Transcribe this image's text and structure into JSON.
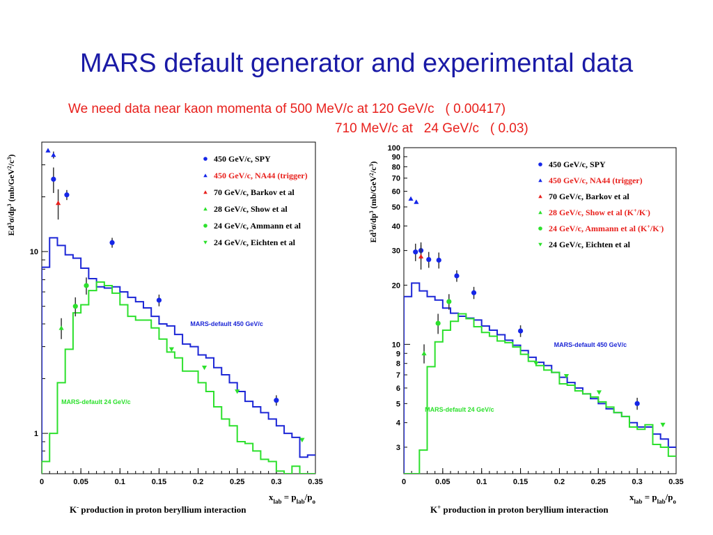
{
  "slide": {
    "title": "MARS default generator  and experimental data",
    "note_line1": "We need data near kaon momenta of 500 MeV/c at 120 GeV/c   ( 0.00417)",
    "note_line2": "710 MeV/c at   24 GeV/c   ( 0.03)"
  },
  "colors": {
    "title": "#1a1aa6",
    "note": "#e8201c",
    "mars_450": "#1c26d6",
    "mars_24": "#2ce02c",
    "spy": "#1526e8",
    "na44": "#1526e8",
    "barkov": "#e8201c",
    "show": "#2ce02c",
    "ammann": "#2ce02c",
    "eichten": "#2ce02c"
  },
  "chart_data": [
    {
      "type": "line",
      "title": "",
      "ylabel": "Ed³σ/dp³  (mb/GeV²/c³)",
      "xlabel": "x_lab = p_lab/p_o",
      "caption": "K⁻ production in proton beryllium interaction",
      "xlim": [
        0,
        0.35
      ],
      "ylim": [
        0.6,
        40
      ],
      "yscale": "log",
      "x_ticks": [
        "0",
        "0.05",
        "0.1",
        "0.15",
        "0.2",
        "0.25",
        "0.3",
        "0.35"
      ],
      "y_tick_labels": [
        "1",
        "10"
      ],
      "grid": false,
      "legend_position": "top-right",
      "legend": [
        {
          "label": "450 GeV/c, SPY",
          "marker": "circle",
          "color_key": "spy",
          "text_color": "#000000"
        },
        {
          "label": "450 GeV/c, NA44 (trigger)",
          "marker": "triangle-up",
          "color_key": "na44",
          "text_color": "#e8201c"
        },
        {
          "label": "70 GeV/c, Barkov et al",
          "marker": "triangle-up",
          "color_key": "barkov",
          "text_color": "#000000"
        },
        {
          "label": "28 GeV/c, Show et al",
          "marker": "triangle-up",
          "color_key": "show",
          "text_color": "#000000"
        },
        {
          "label": "24 GeV/c, Ammann et al",
          "marker": "circle",
          "color_key": "ammann",
          "text_color": "#000000"
        },
        {
          "label": "24 GeV/c, Eichten et al",
          "marker": "triangle-down",
          "color_key": "eichten",
          "text_color": "#000000"
        }
      ],
      "series": [
        {
          "name": "MARS-default 450 GeV/c",
          "kind": "step",
          "color_key": "mars_450",
          "edges": [
            0,
            0.01,
            0.02,
            0.03,
            0.04,
            0.05,
            0.06,
            0.07,
            0.08,
            0.09,
            0.1,
            0.11,
            0.12,
            0.13,
            0.14,
            0.15,
            0.16,
            0.17,
            0.18,
            0.19,
            0.2,
            0.21,
            0.22,
            0.23,
            0.24,
            0.25,
            0.26,
            0.27,
            0.28,
            0.29,
            0.3,
            0.31,
            0.32,
            0.33,
            0.34,
            0.35
          ],
          "values": [
            8.2,
            11.9,
            10.8,
            9.6,
            9.2,
            8.1,
            7.1,
            6.4,
            6.3,
            6.4,
            6.0,
            5.6,
            5.3,
            4.9,
            4.4,
            4.0,
            3.9,
            3.5,
            3.1,
            3.0,
            2.7,
            2.6,
            2.3,
            2.1,
            1.9,
            1.7,
            1.5,
            1.4,
            1.3,
            1.2,
            1.1,
            1.0,
            0.95,
            0.74,
            0.76
          ],
          "label_x": 0.19,
          "label_y": 3.9
        },
        {
          "name": "MARS-default 24 GeV/c",
          "kind": "step",
          "color_key": "mars_24",
          "edges": [
            0,
            0.01,
            0.02,
            0.03,
            0.04,
            0.05,
            0.06,
            0.07,
            0.08,
            0.09,
            0.1,
            0.11,
            0.12,
            0.13,
            0.14,
            0.15,
            0.16,
            0.17,
            0.18,
            0.19,
            0.2,
            0.21,
            0.22,
            0.23,
            0.24,
            0.25,
            0.26,
            0.27,
            0.28,
            0.29,
            0.3,
            0.31,
            0.32,
            0.33,
            0.34,
            0.35
          ],
          "values": [
            0.7,
            1.0,
            1.9,
            2.9,
            4.6,
            5.1,
            6.1,
            6.8,
            6.5,
            5.9,
            5.1,
            4.4,
            4.2,
            4.2,
            3.8,
            3.3,
            2.8,
            2.6,
            2.2,
            2.2,
            1.9,
            1.7,
            1.4,
            1.2,
            1.1,
            0.9,
            0.88,
            0.8,
            0.72,
            0.7,
            0.62,
            0.6,
            0.66,
            0.6,
            0.6
          ],
          "label_x": 0.025,
          "label_y": 1.45
        },
        {
          "name": "450 GeV/c, SPY",
          "kind": "points",
          "marker": "circle",
          "color_key": "spy",
          "points": [
            [
              0.015,
              25,
              4
            ],
            [
              0.032,
              20.5,
              1.3
            ],
            [
              0.09,
              11.2,
              0.7
            ],
            [
              0.15,
              5.4,
              0.4
            ],
            [
              0.3,
              1.52,
              0.1
            ]
          ]
        },
        {
          "name": "450 GeV/c, NA44 (trigger)",
          "kind": "points",
          "marker": "triangle-up",
          "color_key": "na44",
          "points": [
            [
              0.008,
              36,
              0
            ],
            [
              0.015,
              34,
              1.5
            ]
          ]
        },
        {
          "name": "70 GeV/c, Barkov et al",
          "kind": "points",
          "marker": "triangle-up",
          "color_key": "barkov",
          "points": [
            [
              0.021,
              18.5,
              3.5
            ]
          ]
        },
        {
          "name": "28 GeV/c, Show et al",
          "kind": "points",
          "marker": "triangle-up",
          "color_key": "show",
          "points": [
            [
              0.025,
              3.8,
              0.5
            ]
          ]
        },
        {
          "name": "24 GeV/c, Ammann et al",
          "kind": "points",
          "marker": "circle",
          "color_key": "ammann",
          "points": [
            [
              0.043,
              5.0,
              0.6
            ],
            [
              0.057,
              6.5,
              0.7
            ]
          ]
        },
        {
          "name": "24 GeV/c, Eichten et al",
          "kind": "points",
          "marker": "triangle-down",
          "color_key": "eichten",
          "points": [
            [
              0.166,
              2.9,
              0
            ],
            [
              0.208,
              2.3,
              0
            ],
            [
              0.25,
              1.7,
              0
            ],
            [
              0.333,
              0.92,
              0
            ]
          ]
        }
      ]
    },
    {
      "type": "line",
      "title": "",
      "ylabel": "Ed³σ/dp³  (mb/GeV²/c³)",
      "xlabel": "x_lab = p_lab/p_o",
      "caption": "K⁺ production in proton beryllium interaction",
      "xlim": [
        0,
        0.35
      ],
      "ylim": [
        2.2,
        100
      ],
      "yscale": "log",
      "x_ticks": [
        "0",
        "0.05",
        "0.1",
        "0.15",
        "0.2",
        "0.25",
        "0.3",
        "0.35"
      ],
      "y_tick_labels": [
        "3",
        "4",
        "5",
        "6",
        "7",
        "8",
        "9",
        "10",
        "20",
        "30",
        "40",
        "50",
        "60",
        "70",
        "80",
        "90",
        "100"
      ],
      "grid": false,
      "legend_position": "top-right",
      "legend": [
        {
          "label": "450 GeV/c, SPY",
          "marker": "circle",
          "color_key": "spy",
          "text_color": "#000000"
        },
        {
          "label": "450 GeV/c, NA44 (trigger)",
          "marker": "triangle-up",
          "color_key": "na44",
          "text_color": "#e8201c"
        },
        {
          "label": "70 GeV/c, Barkov et al",
          "marker": "triangle-up",
          "color_key": "barkov",
          "text_color": "#000000"
        },
        {
          "label": "28 GeV/c, Show et al (K⁺/K⁻)",
          "marker": "triangle-up",
          "color_key": "show",
          "text_color": "#e8201c"
        },
        {
          "label": "24 GeV/c, Ammann et al (K⁺/K⁻)",
          "marker": "circle",
          "color_key": "ammann",
          "text_color": "#e8201c"
        },
        {
          "label": "24 GeV/c, Eichten et al",
          "marker": "triangle-down",
          "color_key": "eichten",
          "text_color": "#000000"
        }
      ],
      "series": [
        {
          "name": "MARS-default 450 GeV/c",
          "kind": "step",
          "color_key": "mars_450",
          "edges": [
            0,
            0.01,
            0.02,
            0.03,
            0.04,
            0.05,
            0.06,
            0.07,
            0.08,
            0.09,
            0.1,
            0.11,
            0.12,
            0.13,
            0.14,
            0.15,
            0.16,
            0.17,
            0.18,
            0.19,
            0.2,
            0.21,
            0.22,
            0.23,
            0.24,
            0.25,
            0.26,
            0.27,
            0.28,
            0.29,
            0.3,
            0.31,
            0.32,
            0.33,
            0.34,
            0.35
          ],
          "values": [
            17.5,
            20.5,
            18.7,
            17.5,
            16.8,
            15.3,
            14.4,
            13.9,
            13.6,
            13.3,
            12.4,
            11.8,
            11.2,
            10.5,
            9.9,
            9.3,
            8.6,
            8.1,
            7.8,
            7.2,
            6.8,
            6.4,
            6.0,
            5.6,
            5.3,
            5.0,
            4.7,
            4.5,
            4.3,
            4.0,
            3.8,
            3.8,
            3.5,
            3.3,
            3.0
          ],
          "label_x": 0.193,
          "label_y": 9.7
        },
        {
          "name": "MARS-default 24 GeV/c",
          "kind": "step",
          "color_key": "mars_24",
          "edges": [
            0,
            0.01,
            0.02,
            0.03,
            0.04,
            0.05,
            0.06,
            0.07,
            0.08,
            0.09,
            0.1,
            0.11,
            0.12,
            0.13,
            0.14,
            0.15,
            0.16,
            0.17,
            0.18,
            0.19,
            0.2,
            0.21,
            0.22,
            0.23,
            0.24,
            0.25,
            0.26,
            0.27,
            0.28,
            0.29,
            0.3,
            0.31,
            0.32,
            0.33,
            0.34,
            0.35
          ],
          "values": [
            2.0,
            2.2,
            2.9,
            7.7,
            10.3,
            11.8,
            13.1,
            14.3,
            13.5,
            12.3,
            11.5,
            11.0,
            10.4,
            10.2,
            9.7,
            8.9,
            8.2,
            7.8,
            7.4,
            7.2,
            6.3,
            6.2,
            5.8,
            5.6,
            5.4,
            5.1,
            4.8,
            4.5,
            4.3,
            3.8,
            3.7,
            3.9,
            3.1,
            3.0,
            2.7
          ],
          "label_x": 0.027,
          "label_y": 4.55
        },
        {
          "name": "450 GeV/c, SPY",
          "kind": "points",
          "marker": "circle",
          "color_key": "spy",
          "points": [
            [
              0.015,
              29.5,
              3
            ],
            [
              0.022,
              30,
              3
            ],
            [
              0.032,
              27,
              2.5
            ],
            [
              0.045,
              26.8,
              2.5
            ],
            [
              0.068,
              22.3,
              1.5
            ],
            [
              0.09,
              18.3,
              1.3
            ],
            [
              0.15,
              11.7,
              0.8
            ],
            [
              0.3,
              5.0,
              0.35
            ]
          ]
        },
        {
          "name": "450 GeV/c, NA44 (trigger)",
          "kind": "points",
          "marker": "triangle-up",
          "color_key": "na44",
          "points": [
            [
              0.009,
              55,
              0
            ],
            [
              0.016,
              53,
              0
            ]
          ]
        },
        {
          "name": "70 GeV/c, Barkov et al",
          "kind": "points",
          "marker": "triangle-up",
          "color_key": "barkov",
          "points": [
            [
              0.022,
              28,
              4
            ]
          ]
        },
        {
          "name": "28 GeV/c, Show et al (K⁺/K⁻)",
          "kind": "points",
          "marker": "triangle-up",
          "color_key": "show",
          "points": [
            [
              0.026,
              9.0,
              1
            ]
          ]
        },
        {
          "name": "24 GeV/c, Ammann et al (K⁺/K⁻)",
          "kind": "points",
          "marker": "circle",
          "color_key": "ammann",
          "points": [
            [
              0.044,
              12.8,
              1.5
            ],
            [
              0.058,
              16.5,
              1.5
            ]
          ]
        },
        {
          "name": "24 GeV/c, Eichten et al",
          "kind": "points",
          "marker": "triangle-down",
          "color_key": "eichten",
          "points": [
            [
              0.17,
              8.0,
              0
            ],
            [
              0.209,
              6.9,
              0
            ],
            [
              0.251,
              5.7,
              0
            ],
            [
              0.333,
              3.9,
              0
            ]
          ]
        }
      ]
    }
  ]
}
